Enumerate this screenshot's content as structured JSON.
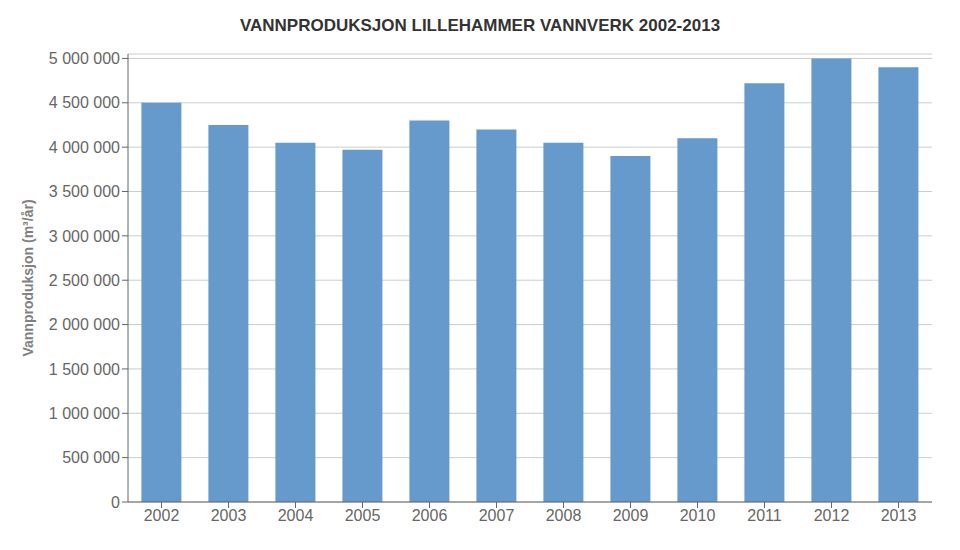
{
  "chart_data": {
    "type": "bar",
    "title": "VANNPRODUKSJON LILLEHAMMER VANNVERK 2002-2013",
    "ylabel": "Vannproduksjon (m³/år)",
    "categories": [
      "2002",
      "2003",
      "2004",
      "2005",
      "2006",
      "2007",
      "2008",
      "2009",
      "2010",
      "2011",
      "2012",
      "2013"
    ],
    "values": [
      4500000,
      4250000,
      4050000,
      3970000,
      4300000,
      4200000,
      4050000,
      3900000,
      4100000,
      4720000,
      5000000,
      4900000
    ],
    "color": "#6699CC",
    "ylim": [
      0,
      5050000
    ],
    "yticks": [
      0,
      {
        "value": 500000,
        "label": "500 000"
      },
      {
        "value": 1000000,
        "label": "1 000 000"
      },
      {
        "value": 1500000,
        "label": "1 500 000"
      },
      {
        "value": 2000000,
        "label": "2 000 000"
      },
      {
        "value": 2500000,
        "label": "2 500 000"
      },
      {
        "value": 3000000,
        "label": "3 000 000"
      },
      {
        "value": 3500000,
        "label": "3 500 000"
      },
      {
        "value": 4000000,
        "label": "4 000 000"
      },
      {
        "value": 4500000,
        "label": "4 500 000"
      },
      {
        "value": 5000000,
        "label": "5 000 000"
      }
    ],
    "grid": true
  }
}
